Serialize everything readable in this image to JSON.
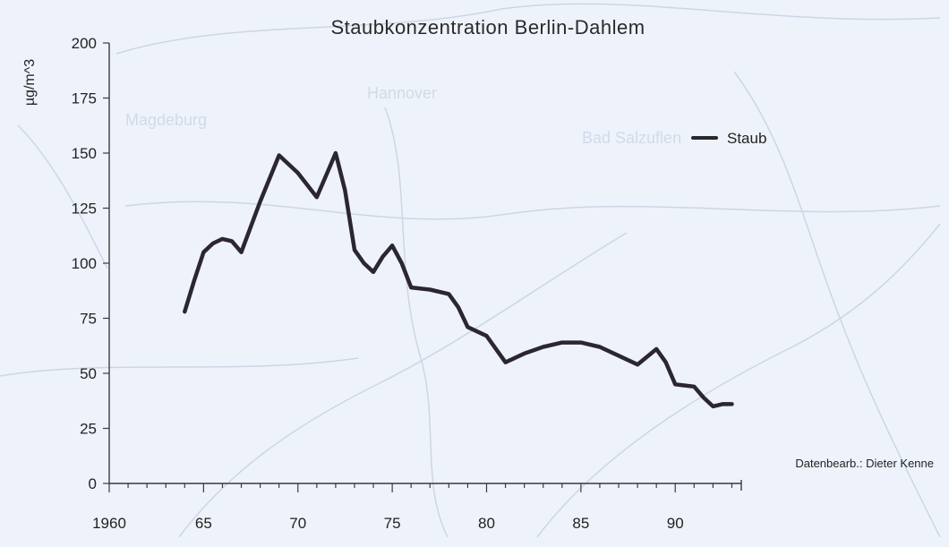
{
  "chart_data": {
    "type": "line",
    "title": "Staubkonzentration Berlin-Dahlem",
    "ylabel": "µg/m^3",
    "xlabel": "",
    "xlim": [
      1960,
      1993.5
    ],
    "ylim": [
      0,
      200
    ],
    "x_ticks_major": [
      1960,
      1965,
      1970,
      1975,
      1980,
      1985,
      1990
    ],
    "x_tick_labels": [
      "1960",
      "65",
      "70",
      "75",
      "80",
      "85",
      "90"
    ],
    "x_ticks_minor": [
      1961,
      1962,
      1963,
      1964,
      1966,
      1967,
      1968,
      1969,
      1971,
      1972,
      1973,
      1974,
      1976,
      1977,
      1978,
      1979,
      1981,
      1982,
      1983,
      1984,
      1986,
      1987,
      1988,
      1989,
      1991,
      1992,
      1993
    ],
    "y_ticks": [
      0,
      25,
      50,
      75,
      100,
      125,
      150,
      175,
      200
    ],
    "y_tick_labels": [
      "0",
      "25",
      "50",
      "75",
      "100",
      "125",
      "150",
      "175",
      "200"
    ],
    "legend_position": "top-right",
    "grid": false,
    "series": [
      {
        "name": "Staub",
        "color": "#2b2630",
        "x": [
          1964,
          1964.5,
          1965,
          1965.5,
          1966,
          1966.5,
          1967,
          1968,
          1969,
          1970,
          1971,
          1971.5,
          1972,
          1972.5,
          1973,
          1973.5,
          1974,
          1974.5,
          1975,
          1975.5,
          1976,
          1977,
          1978,
          1978.5,
          1979,
          1980,
          1981,
          1982,
          1983,
          1984,
          1985,
          1986,
          1987,
          1988,
          1989,
          1989.5,
          1990,
          1991,
          1991.5,
          1992,
          1992.5,
          1993
        ],
        "values": [
          78,
          92,
          105,
          109,
          111,
          110,
          105,
          128,
          149,
          141,
          130,
          140,
          150,
          133,
          106,
          100,
          96,
          103,
          108,
          100,
          89,
          88,
          86,
          80,
          71,
          67,
          55,
          59,
          62,
          64,
          64,
          62,
          58,
          54,
          61,
          55,
          45,
          44,
          39,
          35,
          36,
          36
        ]
      }
    ],
    "annotations": [
      "Datenbearb.: Dieter Kenne"
    ]
  }
}
